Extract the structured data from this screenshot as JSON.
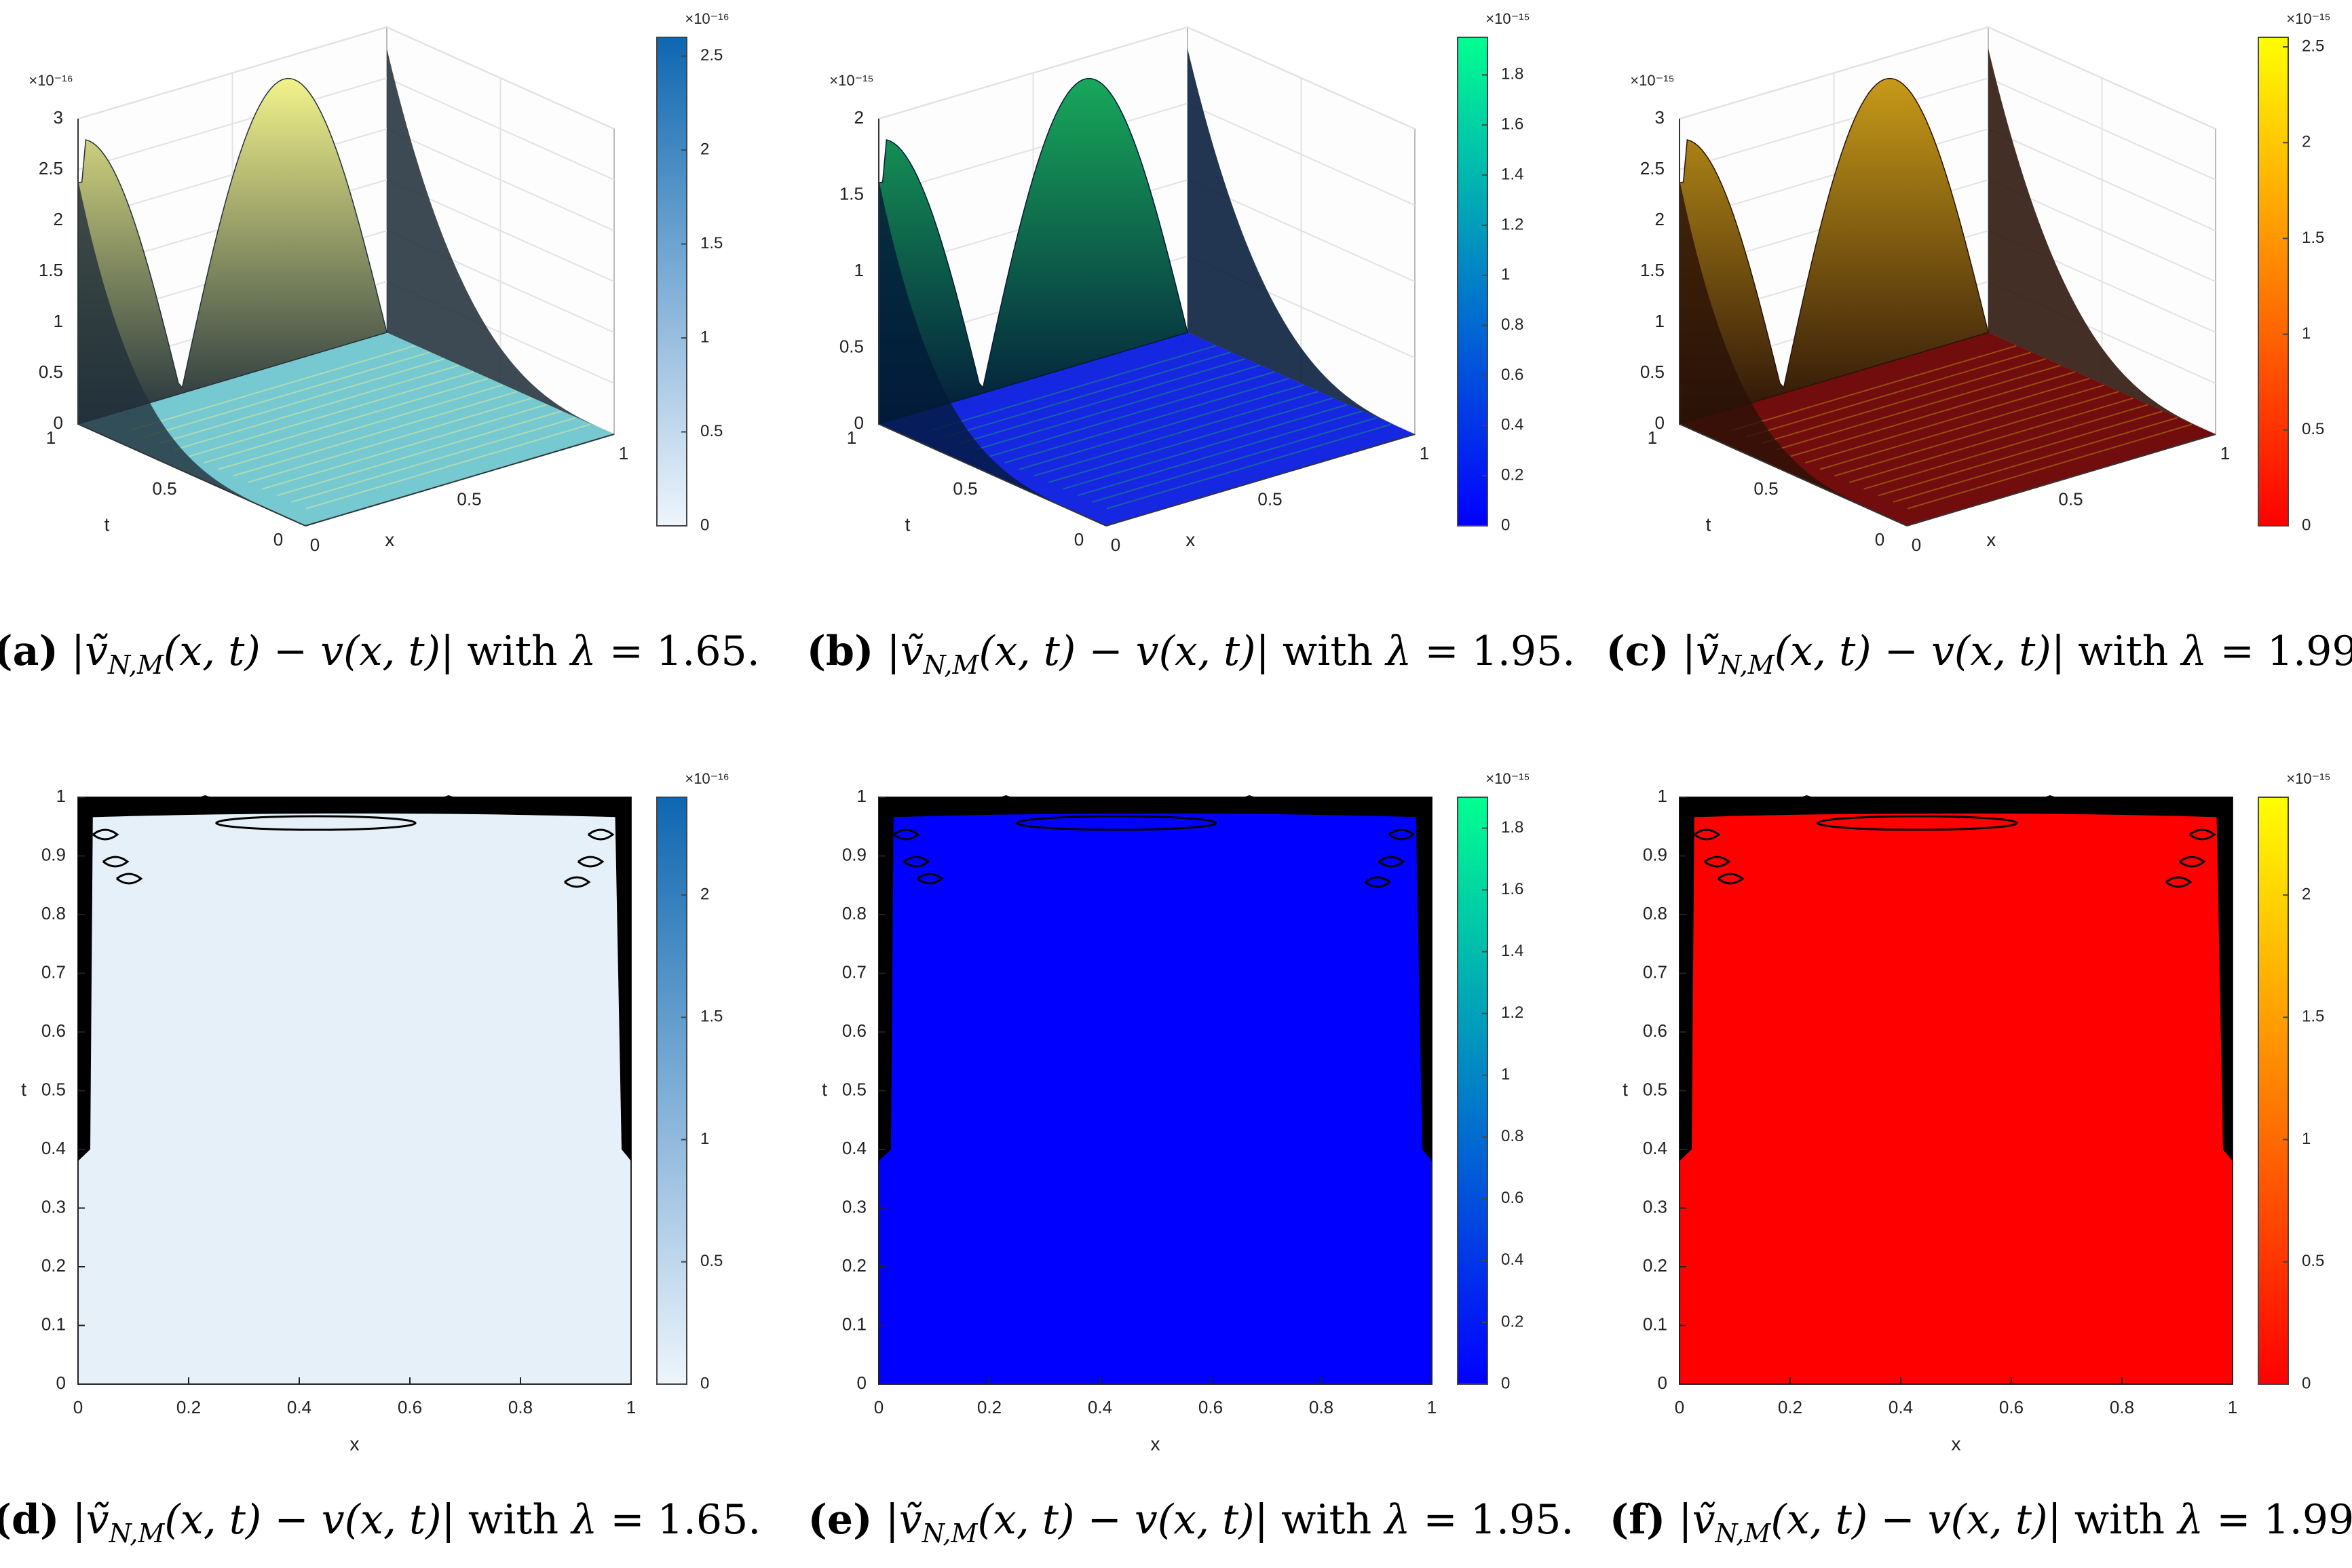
{
  "figure": {
    "captions": [
      {
        "label": "(a)",
        "pre": "|",
        "expr": "ṽ",
        "sub": "N,M",
        "args": "(x, t) − v(x, t)",
        "post": "| with ",
        "lam": "λ",
        "eq": " = 1.65."
      },
      {
        "label": "(b)",
        "pre": "|",
        "expr": "ṽ",
        "sub": "N,M",
        "args": "(x, t) − v(x, t)",
        "post": "| with ",
        "lam": "λ",
        "eq": " = 1.95."
      },
      {
        "label": "(c)",
        "pre": "|",
        "expr": "ṽ",
        "sub": "N,M",
        "args": "(x, t) − v(x, t)",
        "post": "| with ",
        "lam": "λ",
        "eq": " = 1.99."
      },
      {
        "label": "(d)",
        "pre": "|",
        "expr": "ṽ",
        "sub": "N,M",
        "args": "(x, t) − v(x, t)",
        "post": "| with ",
        "lam": "λ",
        "eq": " = 1.65."
      },
      {
        "label": "(e)",
        "pre": "|",
        "expr": "ṽ",
        "sub": "N,M",
        "args": "(x, t) − v(x, t)",
        "post": "| with ",
        "lam": "λ",
        "eq": " = 1.95."
      },
      {
        "label": "(f)",
        "pre": "|",
        "expr": "ṽ",
        "sub": "N,M",
        "args": "(x, t) − v(x, t)",
        "post": "| with ",
        "lam": "λ",
        "eq": " = 1.99."
      }
    ]
  },
  "chart_data": [
    {
      "id": "a",
      "type": "surface",
      "xlabel": "x",
      "ylabel": "t",
      "z_ticks": [
        "0",
        "0.5",
        "1",
        "1.5",
        "2",
        "2.5",
        "3"
      ],
      "z_range": [
        0,
        3
      ],
      "z_exponent": "×10⁻¹⁶",
      "x_ticks": [
        "0",
        "0.5",
        "1"
      ],
      "t_ticks": [
        "0",
        "0.5",
        "1"
      ],
      "colorbar": {
        "ticks": [
          "0",
          "0.5",
          "1",
          "1.5",
          "2",
          "2.5"
        ],
        "range": [
          0,
          2.6
        ],
        "exponent": "×10⁻¹⁶"
      },
      "colors": {
        "low": "#6fc6cf",
        "high": "#f2f28a",
        "dark": "#22313b",
        "cb_low": "#eef5fb",
        "cb_high": "#0e67b0"
      }
    },
    {
      "id": "b",
      "type": "surface",
      "xlabel": "x",
      "ylabel": "t",
      "z_ticks": [
        "0",
        "0.5",
        "1",
        "1.5",
        "2"
      ],
      "z_range": [
        0,
        2
      ],
      "z_exponent": "×10⁻¹⁵",
      "x_ticks": [
        "0",
        "0.5",
        "1"
      ],
      "t_ticks": [
        "0",
        "0.5",
        "1"
      ],
      "colorbar": {
        "ticks": [
          "0",
          "0.2",
          "0.4",
          "0.6",
          "0.8",
          "1",
          "1.2",
          "1.4",
          "1.6",
          "1.8"
        ],
        "range": [
          0,
          1.95
        ],
        "exponent": "×10⁻¹⁵"
      },
      "colors": {
        "low": "#0a1be0",
        "high": "#18a85a",
        "dark": "#031a3a",
        "cb_low": "#0000ff",
        "cb_high": "#00ff90"
      }
    },
    {
      "id": "c",
      "type": "surface",
      "xlabel": "x",
      "ylabel": "t",
      "z_ticks": [
        "0",
        "0.5",
        "1",
        "1.5",
        "2",
        "2.5",
        "3"
      ],
      "z_range": [
        0,
        3
      ],
      "z_exponent": "×10⁻¹⁵",
      "x_ticks": [
        "0",
        "0.5",
        "1"
      ],
      "t_ticks": [
        "0",
        "0.5",
        "1"
      ],
      "colorbar": {
        "ticks": [
          "0",
          "0.5",
          "1",
          "1.5",
          "2",
          "2.5"
        ],
        "range": [
          0,
          2.55
        ],
        "exponent": "×10⁻¹⁵"
      },
      "colors": {
        "low": "#6a0000",
        "high": "#c79a18",
        "dark": "#2a1208",
        "cb_low": "#ff0000",
        "cb_high": "#ffff00"
      }
    },
    {
      "id": "d",
      "type": "contour",
      "xlabel": "x",
      "ylabel": "t",
      "x_ticks": [
        "0",
        "0.2",
        "0.4",
        "0.6",
        "0.8",
        "1"
      ],
      "t_ticks": [
        "0",
        "0.1",
        "0.2",
        "0.3",
        "0.4",
        "0.5",
        "0.6",
        "0.7",
        "0.8",
        "0.9",
        "1"
      ],
      "colorbar": {
        "ticks": [
          "0",
          "0.5",
          "1",
          "1.5",
          "2"
        ],
        "range": [
          0,
          2.4
        ],
        "exponent": "×10⁻¹⁶"
      },
      "colors": {
        "fill": "#e6f0f9",
        "cb_low": "#eef5fb",
        "cb_high": "#0e67b0"
      }
    },
    {
      "id": "e",
      "type": "contour",
      "xlabel": "x",
      "ylabel": "t",
      "x_ticks": [
        "0",
        "0.2",
        "0.4",
        "0.6",
        "0.8",
        "1"
      ],
      "t_ticks": [
        "0",
        "0.1",
        "0.2",
        "0.3",
        "0.4",
        "0.5",
        "0.6",
        "0.7",
        "0.8",
        "0.9",
        "1"
      ],
      "colorbar": {
        "ticks": [
          "0",
          "0.2",
          "0.4",
          "0.6",
          "0.8",
          "1",
          "1.2",
          "1.4",
          "1.6",
          "1.8"
        ],
        "range": [
          0,
          1.9
        ],
        "exponent": "×10⁻¹⁵"
      },
      "colors": {
        "fill": "#0000ff",
        "cb_low": "#0000ff",
        "cb_high": "#00ff90"
      }
    },
    {
      "id": "f",
      "type": "contour",
      "xlabel": "x",
      "ylabel": "t",
      "x_ticks": [
        "0",
        "0.2",
        "0.4",
        "0.6",
        "0.8",
        "1"
      ],
      "t_ticks": [
        "0",
        "0.1",
        "0.2",
        "0.3",
        "0.4",
        "0.5",
        "0.6",
        "0.7",
        "0.8",
        "0.9",
        "1"
      ],
      "colorbar": {
        "ticks": [
          "0",
          "0.5",
          "1",
          "1.5",
          "2"
        ],
        "range": [
          0,
          2.4
        ],
        "exponent": "×10⁻¹⁵"
      },
      "colors": {
        "fill": "#ff0000",
        "cb_low": "#ff0000",
        "cb_high": "#ffff00"
      }
    }
  ]
}
